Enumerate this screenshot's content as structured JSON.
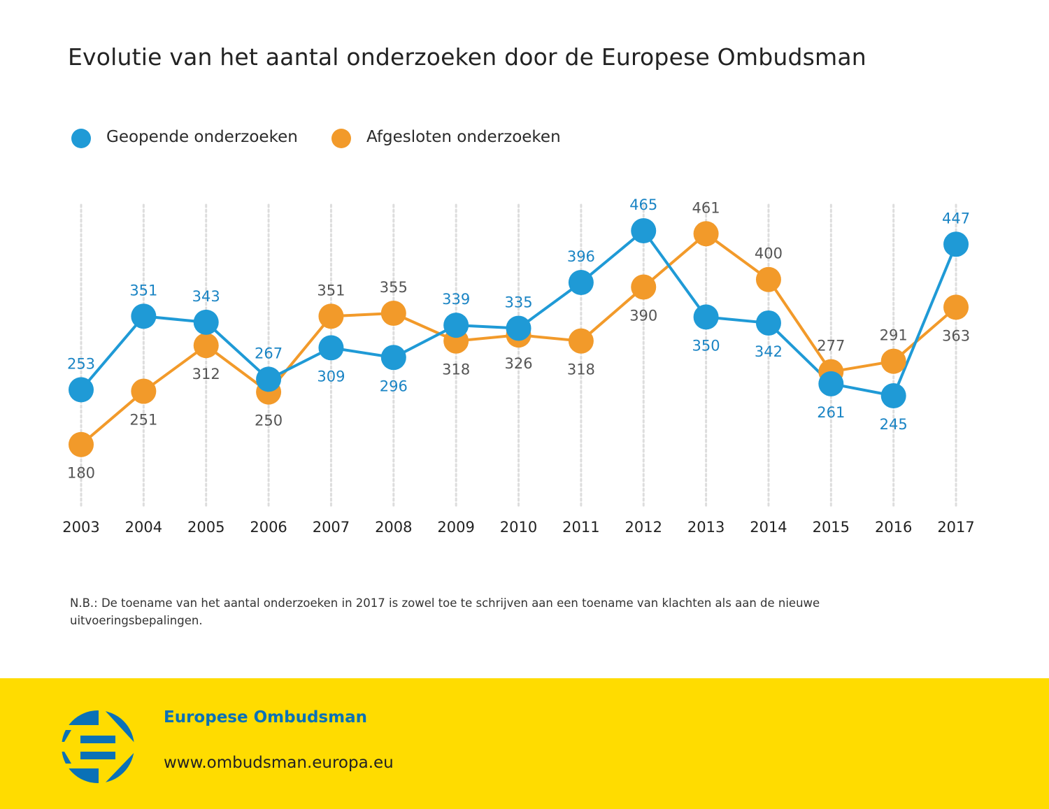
{
  "page": {
    "title": "Evolutie van het aantal onderzoeken door de Europese Ombudsman",
    "note": "N.B.: De toename van het aantal onderzoeken in 2017 is zowel toe te schrijven aan een toename van klachten als aan de nieuwe uitvoeringsbepalingen.",
    "footer": {
      "organization": "Europese Ombudsman",
      "url": "www.ombudsman.europa.eu",
      "logo_icon": "european-ombudsman-logo-icon"
    }
  },
  "colors": {
    "opened": "#1f9ad6",
    "closed": "#f29a2a",
    "opened_label": "#1a84c4",
    "closed_label": "#555555",
    "footer_bg": "#ffdc00",
    "logo": "#0a71b7"
  },
  "legend": [
    {
      "label": "Geopende onderzoeken",
      "series": "opened"
    },
    {
      "label": "Afgesloten onderzoeken",
      "series": "closed"
    }
  ],
  "chart_data": {
    "type": "line",
    "title": "Evolutie van het aantal onderzoeken door de Europese Ombudsman",
    "xlabel": "",
    "ylabel": "",
    "categories": [
      "2003",
      "2004",
      "2005",
      "2006",
      "2007",
      "2008",
      "2009",
      "2010",
      "2011",
      "2012",
      "2013",
      "2014",
      "2015",
      "2016",
      "2017"
    ],
    "series": [
      {
        "name": "Geopende onderzoeken",
        "key": "opened",
        "values": [
          253,
          351,
          343,
          267,
          309,
          296,
          339,
          335,
          396,
          465,
          350,
          342,
          261,
          245,
          447
        ],
        "label_position": [
          "above",
          "above",
          "above",
          "above",
          "below",
          "below",
          "above",
          "above",
          "above",
          "above",
          "below",
          "below",
          "below",
          "below",
          "above"
        ]
      },
      {
        "name": "Afgesloten onderzoeken",
        "key": "closed",
        "values": [
          180,
          251,
          312,
          250,
          351,
          355,
          318,
          326,
          318,
          390,
          461,
          400,
          277,
          291,
          363
        ],
        "label_position": [
          "below",
          "below",
          "below",
          "below",
          "above",
          "above",
          "below",
          "below",
          "below",
          "below",
          "above",
          "above",
          "above",
          "above",
          "below"
        ]
      }
    ],
    "ylim": [
      140,
      500
    ],
    "grid": "vertical dotted lines per year",
    "legend_position": "top-left"
  }
}
